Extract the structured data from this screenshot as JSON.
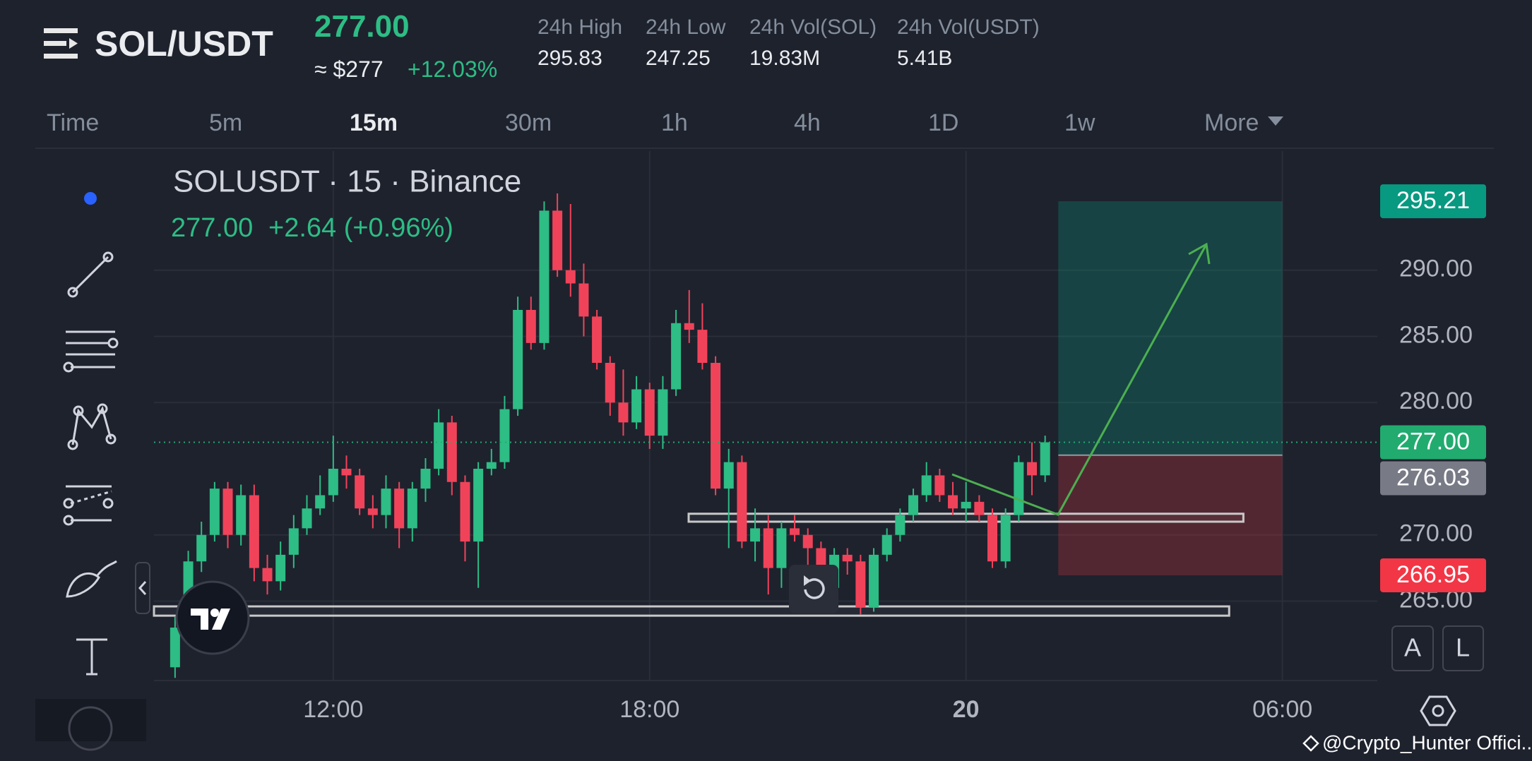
{
  "header": {
    "pair": "SOL/USDT",
    "price": "277.00",
    "approx": "≈ $277",
    "change": "+12.03%",
    "stats": [
      {
        "label": "24h High",
        "value": "295.83"
      },
      {
        "label": "24h Low",
        "value": "247.25"
      },
      {
        "label": "24h Vol(SOL)",
        "value": "19.83M"
      },
      {
        "label": "24h Vol(USDT)",
        "value": "5.41B"
      }
    ]
  },
  "timeframes": {
    "items": [
      "Time",
      "5m",
      "15m",
      "30m",
      "1h",
      "4h",
      "1D",
      "1w",
      "More"
    ],
    "active": "15m"
  },
  "legend": {
    "symbol": "SOLUSDT · 15 · Binance",
    "last": "277.00",
    "change": "+2.64 (+0.96%)"
  },
  "buttons": [
    "A",
    "L"
  ],
  "watermark": "@Crypto_Hunter Offici...",
  "chart_data": {
    "type": "candlestick",
    "x": [
      9,
      9.25,
      9.5,
      9.75,
      10,
      10.25,
      10.5,
      10.75,
      11,
      11.25,
      11.5,
      11.75,
      12,
      12.25,
      12.5,
      12.75,
      13,
      13.25,
      13.5,
      13.75,
      14,
      14.25,
      14.5,
      14.75,
      15,
      15.25,
      15.5,
      15.75,
      16,
      16.25,
      16.5,
      16.75,
      17,
      17.25,
      17.5,
      17.75,
      18,
      18.25,
      18.5,
      18.75,
      19,
      19.25,
      19.5,
      19.75,
      20,
      20.25,
      20.5,
      20.75,
      21,
      21.25,
      21.5,
      21.75,
      22,
      22.25,
      22.5,
      22.75,
      23,
      23.25,
      23.5,
      23.75,
      24,
      24.25,
      24.5,
      24.75,
      25,
      25.25,
      25.5
    ],
    "open": [
      260,
      263,
      268,
      270,
      273.5,
      270,
      273,
      267.5,
      266.5,
      268.5,
      270.5,
      272,
      273,
      275,
      274.5,
      272,
      271.5,
      273.5,
      270.5,
      273.5,
      275,
      278.5,
      274,
      269.5,
      275,
      275.5,
      279.5,
      287,
      284.5,
      294.5,
      290,
      289,
      286.5,
      283,
      280,
      278.5,
      281,
      277.5,
      281,
      286,
      285.5,
      283,
      273.5,
      275.5,
      269.5,
      270.5,
      267.5,
      270.5,
      270,
      269,
      266,
      268.5,
      268,
      264.5,
      268.5,
      270,
      271.5,
      273,
      274.5,
      273,
      272,
      272.5,
      271.5,
      268,
      271.5,
      275.5,
      274.5
    ],
    "high": [
      263.8,
      268.8,
      271,
      274,
      274,
      273.8,
      273.8,
      268.5,
      269.5,
      271.5,
      273,
      274.5,
      277.5,
      276,
      275,
      273,
      274.5,
      274,
      274,
      275.8,
      279.5,
      279,
      274.5,
      275.5,
      276.5,
      280.5,
      288,
      288,
      295.2,
      295.8,
      295,
      290.5,
      287,
      283.5,
      282.5,
      282,
      281.5,
      282,
      287,
      288.5,
      287.5,
      283.5,
      276.5,
      276,
      272,
      271.5,
      271,
      271.5,
      270.5,
      269.5,
      269,
      269,
      268.5,
      269,
      270.5,
      272,
      273.5,
      275.5,
      275,
      274,
      274,
      273,
      272,
      272,
      276,
      277,
      277.5
    ],
    "low": [
      259.2,
      262.2,
      267.2,
      269.5,
      269,
      269.2,
      266.5,
      265.5,
      265.8,
      267.5,
      270,
      271.5,
      272.5,
      273.5,
      271.5,
      270.5,
      270.5,
      269,
      269.5,
      272.5,
      274.5,
      273,
      268,
      266,
      274.5,
      275,
      279,
      284,
      284,
      289.5,
      288,
      285,
      282.5,
      279,
      277.5,
      278,
      276.5,
      276.5,
      280.5,
      284.5,
      282.5,
      273,
      269,
      269,
      268,
      265.5,
      266,
      269.5,
      267.5,
      265,
      265.5,
      267,
      264,
      264.2,
      268,
      269.5,
      271,
      272.5,
      272.5,
      271.5,
      271,
      271,
      267.5,
      267.5,
      271,
      273,
      274
    ],
    "close": [
      263,
      268,
      270,
      273.5,
      270,
      273,
      267.5,
      266.5,
      268.5,
      270.5,
      272,
      273,
      275,
      274.5,
      272,
      271.5,
      273.5,
      270.5,
      273.5,
      275,
      278.5,
      274,
      269.5,
      275,
      275.5,
      279.5,
      287,
      284.5,
      294.5,
      290,
      289,
      286.5,
      283,
      280,
      278.5,
      281,
      277.5,
      281,
      286,
      285.5,
      283,
      273.5,
      275.5,
      269.5,
      270.5,
      267.5,
      270.5,
      270,
      269,
      266,
      268.5,
      268,
      264.5,
      268.5,
      270,
      271.5,
      273,
      274.5,
      273,
      272,
      272.5,
      271.5,
      268,
      271.5,
      275.5,
      274.5,
      277
    ],
    "up_color": "#2dbd85",
    "down_color": "#f0435a",
    "xlim": [
      8.6,
      31.8
    ],
    "xticks": [
      {
        "value": 12,
        "label": "12:00"
      },
      {
        "value": 18,
        "label": "18:00"
      },
      {
        "value": 24,
        "label": "20"
      },
      {
        "value": 30,
        "label": "06:00"
      }
    ],
    "ylim": [
      259,
      299
    ],
    "yticks": [
      {
        "value": 265,
        "label": "265.00"
      },
      {
        "value": 270,
        "label": "270.00"
      },
      {
        "value": 280,
        "label": "280.00"
      },
      {
        "value": 285,
        "label": "285.00"
      },
      {
        "value": 290,
        "label": "290.00"
      }
    ],
    "grid": true,
    "markers": {
      "target": 295.21,
      "last": {
        "value": 277,
        "label": "277.00"
      },
      "entry": 276.03,
      "stop": 266.95
    },
    "marker_colors": {
      "target": "#089981",
      "last": "#22ab6f",
      "entry": "#787b86",
      "stop": "#f23645"
    },
    "position_x": [
      25.75,
      30
    ],
    "zones": [
      {
        "low": 271,
        "high": 271.6,
        "x": [
          18.74,
          29.26
        ]
      },
      {
        "low": 263.9,
        "high": 264.6,
        "x": [
          8.6,
          28.99
        ]
      }
    ]
  }
}
